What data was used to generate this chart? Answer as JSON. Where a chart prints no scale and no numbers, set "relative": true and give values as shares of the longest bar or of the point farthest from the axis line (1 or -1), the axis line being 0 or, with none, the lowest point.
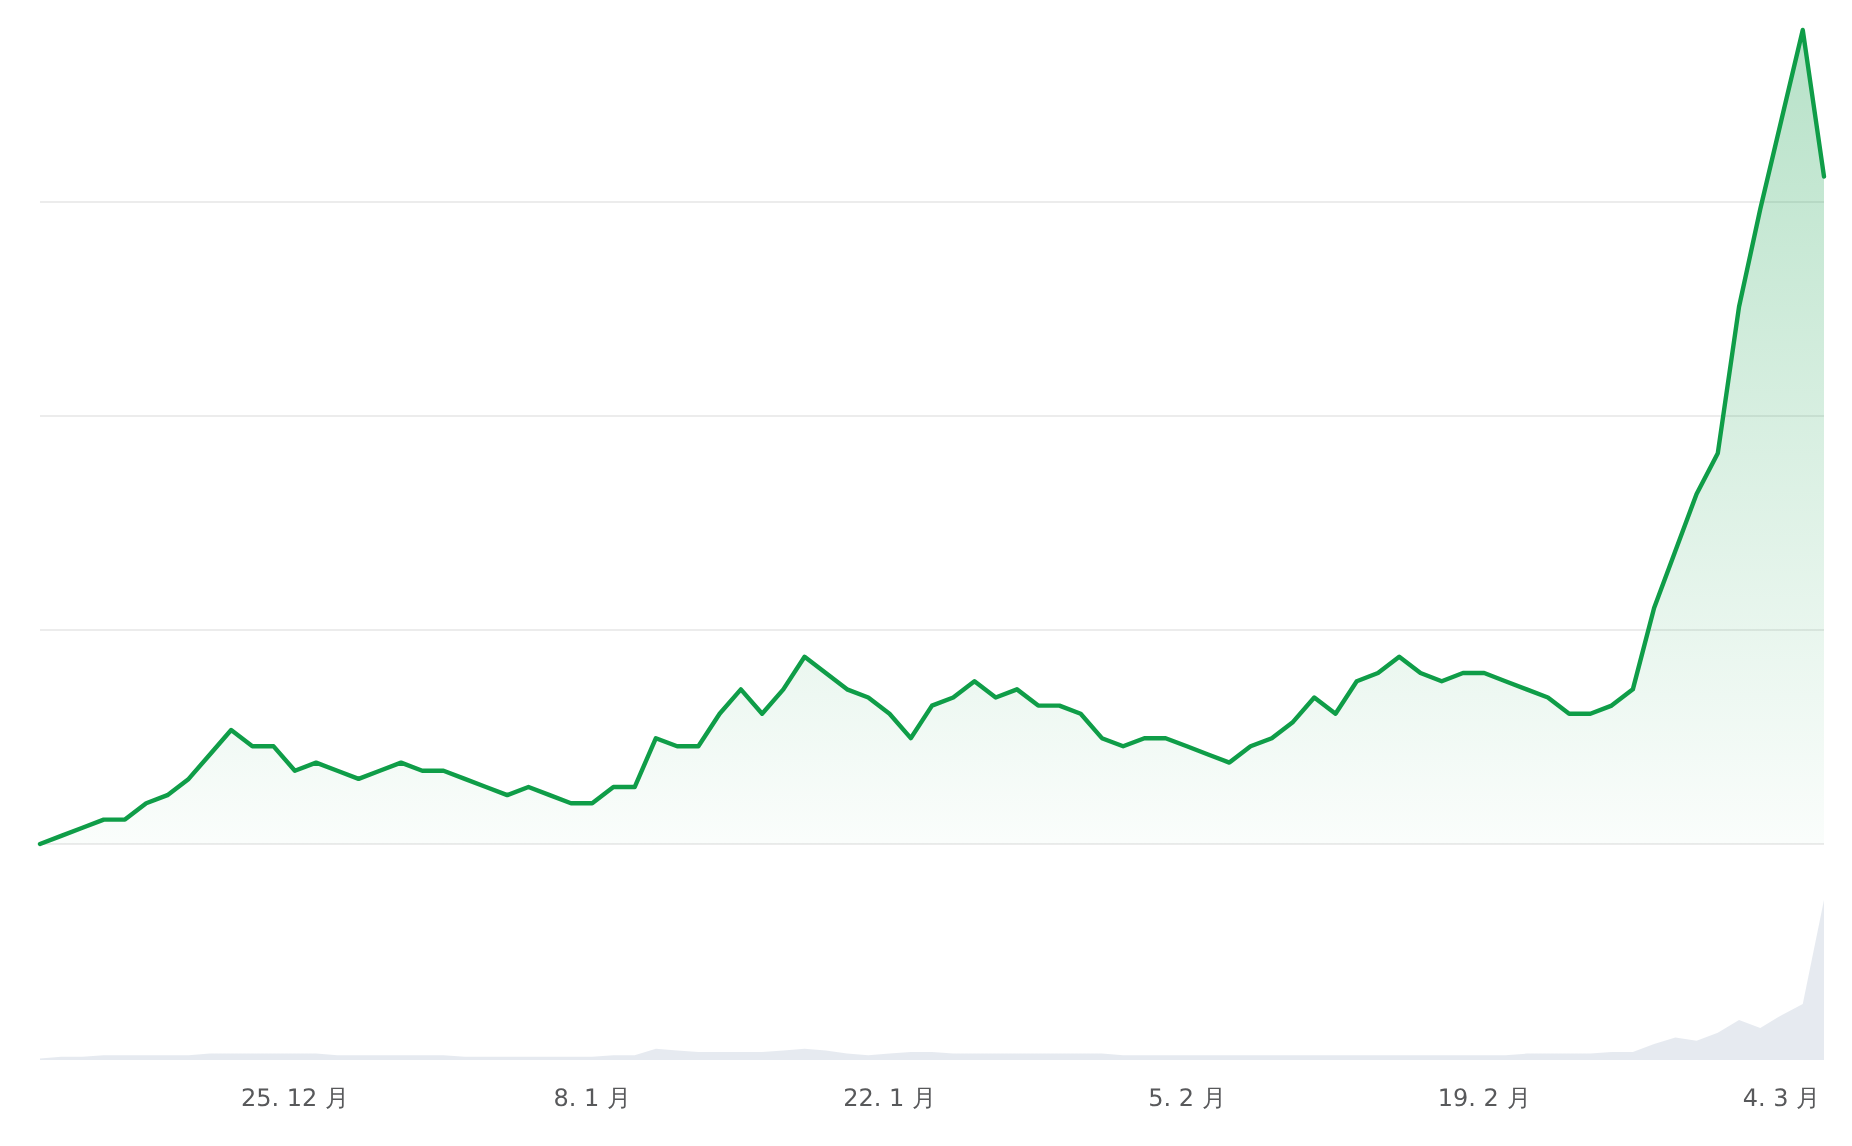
{
  "chart_data": [
    {
      "type": "area",
      "relative": true,
      "grid": "y",
      "categories": [
        null,
        null,
        null,
        null,
        null,
        null,
        null,
        null,
        null,
        null,
        null,
        null,
        null,
        null,
        null,
        null,
        null,
        null,
        null,
        null,
        null,
        null,
        null,
        null,
        null,
        null,
        null,
        null,
        null,
        null,
        null,
        null,
        null,
        null,
        null,
        null,
        null,
        null,
        null,
        null,
        null,
        null,
        null,
        null,
        null,
        null,
        null,
        null,
        null,
        null,
        null,
        null,
        null,
        null,
        null,
        null,
        null,
        null,
        null,
        null,
        null,
        null,
        null,
        null,
        null,
        null,
        null,
        null,
        null,
        null,
        null,
        null,
        null,
        null,
        null,
        null,
        null,
        null,
        null,
        null,
        null,
        null,
        null,
        null,
        null
      ],
      "series": [
        {
          "color": "#0f9d48",
          "values": [
            0,
            0.01,
            0.02,
            0.03,
            0.03,
            0.05,
            0.06,
            0.08,
            0.11,
            0.14,
            0.12,
            0.12,
            0.09,
            0.1,
            0.09,
            0.08,
            0.09,
            0.1,
            0.09,
            0.09,
            0.08,
            0.07,
            0.06,
            0.07,
            0.06,
            0.05,
            0.05,
            0.07,
            0.07,
            0.13,
            0.12,
            0.12,
            0.16,
            0.19,
            0.16,
            0.19,
            0.23,
            0.21,
            0.19,
            0.18,
            0.16,
            0.13,
            0.17,
            0.18,
            0.2,
            0.18,
            0.19,
            0.17,
            0.17,
            0.16,
            0.13,
            0.12,
            0.13,
            0.13,
            0.12,
            0.11,
            0.1,
            0.12,
            0.13,
            0.15,
            0.18,
            0.16,
            0.2,
            0.21,
            0.23,
            0.21,
            0.2,
            0.21,
            0.21,
            0.2,
            0.19,
            0.18,
            0.16,
            0.16,
            0.17,
            0.19,
            0.29,
            0.36,
            0.43,
            0.48,
            0.66,
            0.78,
            0.89,
            1,
            0.82
          ]
        }
      ]
    },
    {
      "type": "area",
      "relative": true,
      "categories": [
        null,
        null,
        null,
        null,
        null,
        null,
        null,
        null,
        null,
        null,
        null,
        null,
        "25. 12 月",
        null,
        null,
        null,
        null,
        null,
        null,
        null,
        null,
        null,
        null,
        null,
        null,
        null,
        "8. 1 月",
        null,
        null,
        null,
        null,
        null,
        null,
        null,
        null,
        null,
        null,
        null,
        null,
        null,
        "22. 1 月",
        null,
        null,
        null,
        null,
        null,
        null,
        null,
        null,
        null,
        null,
        null,
        null,
        null,
        "5. 2 月",
        null,
        null,
        null,
        null,
        null,
        null,
        null,
        null,
        null,
        null,
        null,
        null,
        null,
        "19. 2 月",
        null,
        null,
        null,
        null,
        null,
        null,
        null,
        null,
        null,
        null,
        null,
        null,
        null,
        "4. 3 月",
        null,
        null
      ],
      "series": [
        {
          "color": "#e6eaf0",
          "values": [
            0.01,
            0.02,
            0.02,
            0.03,
            0.03,
            0.03,
            0.03,
            0.03,
            0.04,
            0.04,
            0.04,
            0.04,
            0.04,
            0.04,
            0.03,
            0.03,
            0.03,
            0.03,
            0.03,
            0.03,
            0.02,
            0.02,
            0.02,
            0.02,
            0.02,
            0.02,
            0.02,
            0.03,
            0.03,
            0.07,
            0.06,
            0.05,
            0.05,
            0.05,
            0.05,
            0.06,
            0.07,
            0.06,
            0.04,
            0.03,
            0.04,
            0.05,
            0.05,
            0.04,
            0.04,
            0.04,
            0.04,
            0.04,
            0.04,
            0.04,
            0.04,
            0.03,
            0.03,
            0.03,
            0.03,
            0.03,
            0.03,
            0.03,
            0.03,
            0.03,
            0.03,
            0.03,
            0.03,
            0.03,
            0.03,
            0.03,
            0.03,
            0.03,
            0.03,
            0.03,
            0.04,
            0.04,
            0.04,
            0.04,
            0.05,
            0.05,
            0.1,
            0.14,
            0.12,
            0.17,
            0.25,
            0.2,
            0.28,
            0.35,
            1
          ]
        }
      ]
    }
  ]
}
